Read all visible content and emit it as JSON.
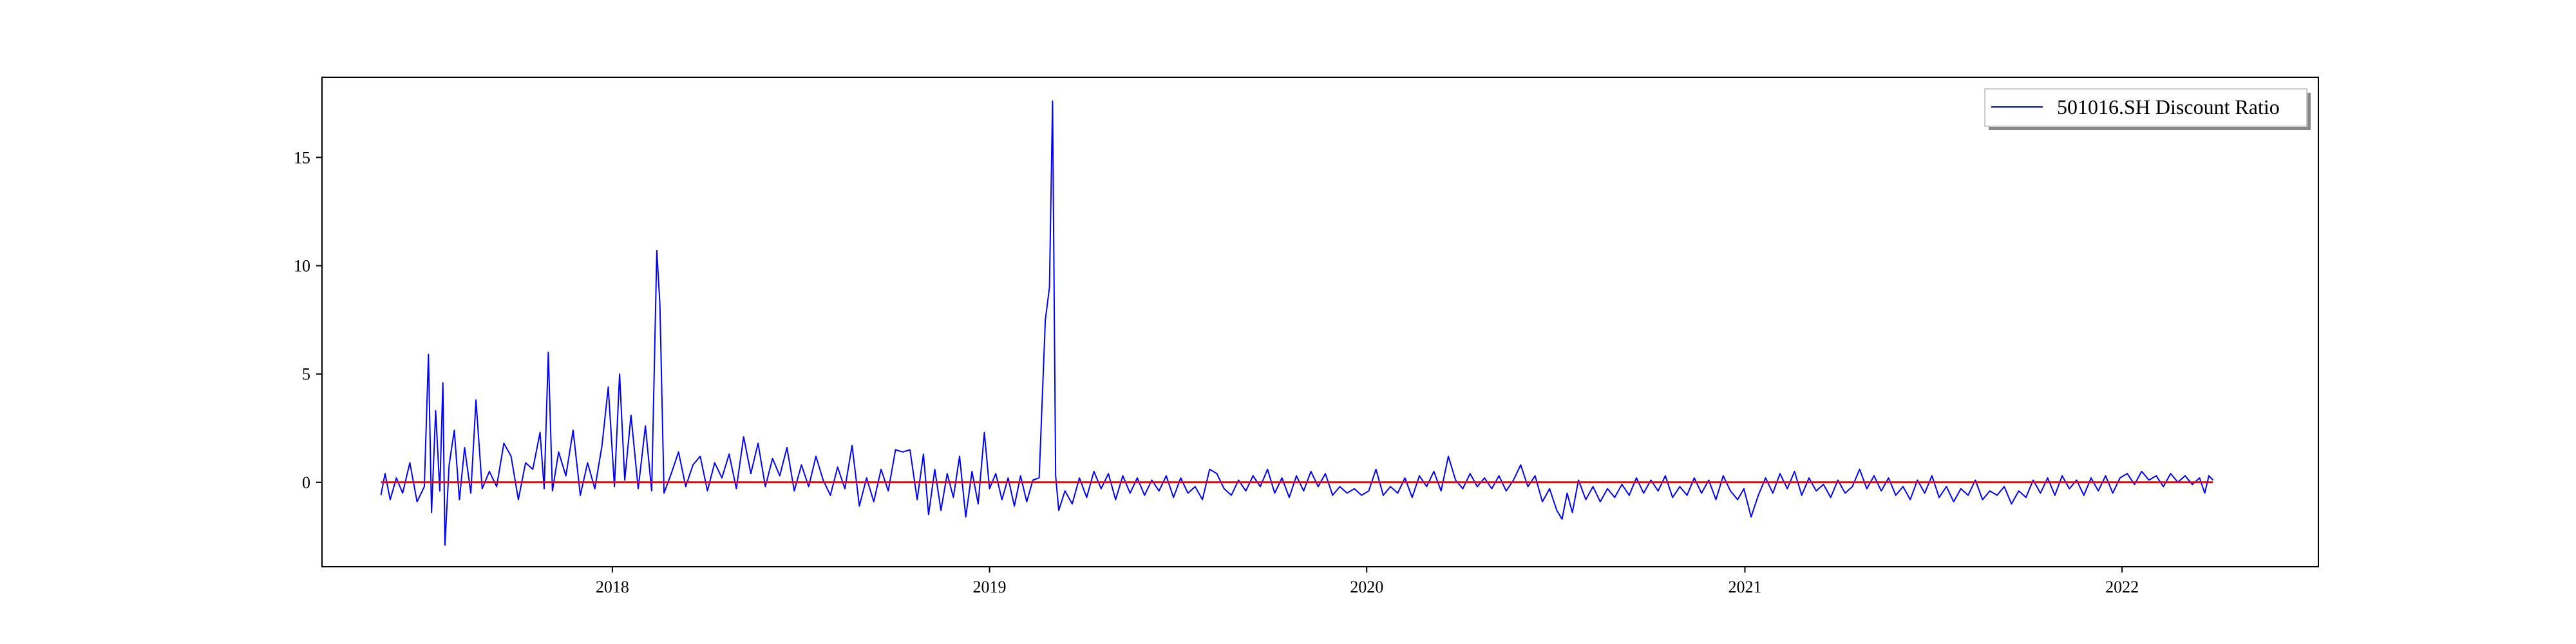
{
  "chart_data": {
    "type": "line",
    "title": "",
    "xlabel": "",
    "ylabel": "",
    "x_ticks": [
      "2018",
      "2019",
      "2020",
      "2021",
      "2022"
    ],
    "y_ticks": [
      "0",
      "5",
      "10",
      "15"
    ],
    "xlim": [
      "2017-03-26",
      "2022-07-10"
    ],
    "ylim": [
      -3.9,
      18.7
    ],
    "grid": false,
    "legend_position": "top-right",
    "series": [
      {
        "name": "501016.SH Discount Ratio",
        "color": "#0000ff",
        "points": [
          [
            "2017-05-22",
            -0.6
          ],
          [
            "2017-05-26",
            0.4
          ],
          [
            "2017-05-31",
            -0.8
          ],
          [
            "2017-06-06",
            0.2
          ],
          [
            "2017-06-12",
            -0.5
          ],
          [
            "2017-06-19",
            0.9
          ],
          [
            "2017-06-26",
            -0.9
          ],
          [
            "2017-07-03",
            -0.2
          ],
          [
            "2017-07-07",
            5.9
          ],
          [
            "2017-07-10",
            -1.4
          ],
          [
            "2017-07-14",
            3.3
          ],
          [
            "2017-07-18",
            -0.4
          ],
          [
            "2017-07-21",
            4.6
          ],
          [
            "2017-07-23",
            -2.9
          ],
          [
            "2017-07-27",
            0.8
          ],
          [
            "2017-08-01",
            2.4
          ],
          [
            "2017-08-06",
            -0.8
          ],
          [
            "2017-08-11",
            1.6
          ],
          [
            "2017-08-17",
            -0.5
          ],
          [
            "2017-08-22",
            3.8
          ],
          [
            "2017-08-28",
            -0.3
          ],
          [
            "2017-09-04",
            0.5
          ],
          [
            "2017-09-11",
            -0.2
          ],
          [
            "2017-09-18",
            1.8
          ],
          [
            "2017-09-25",
            1.2
          ],
          [
            "2017-10-02",
            -0.8
          ],
          [
            "2017-10-09",
            0.9
          ],
          [
            "2017-10-16",
            0.6
          ],
          [
            "2017-10-23",
            2.3
          ],
          [
            "2017-10-27",
            -0.3
          ],
          [
            "2017-10-31",
            6.0
          ],
          [
            "2017-11-04",
            -0.4
          ],
          [
            "2017-11-10",
            1.4
          ],
          [
            "2017-11-17",
            0.3
          ],
          [
            "2017-11-24",
            2.4
          ],
          [
            "2017-12-01",
            -0.6
          ],
          [
            "2017-12-08",
            0.9
          ],
          [
            "2017-12-15",
            -0.3
          ],
          [
            "2017-12-22",
            1.7
          ],
          [
            "2017-12-28",
            4.4
          ],
          [
            "2018-01-03",
            -0.2
          ],
          [
            "2018-01-08",
            5.0
          ],
          [
            "2018-01-13",
            0.1
          ],
          [
            "2018-01-19",
            3.1
          ],
          [
            "2018-01-26",
            -0.3
          ],
          [
            "2018-02-02",
            2.6
          ],
          [
            "2018-02-08",
            -0.4
          ],
          [
            "2018-02-13",
            10.7
          ],
          [
            "2018-02-16",
            8.2
          ],
          [
            "2018-02-20",
            -0.5
          ],
          [
            "2018-02-27",
            0.4
          ],
          [
            "2018-03-06",
            1.4
          ],
          [
            "2018-03-13",
            -0.2
          ],
          [
            "2018-03-20",
            0.8
          ],
          [
            "2018-03-27",
            1.2
          ],
          [
            "2018-04-03",
            -0.4
          ],
          [
            "2018-04-10",
            0.9
          ],
          [
            "2018-04-17",
            0.2
          ],
          [
            "2018-04-24",
            1.3
          ],
          [
            "2018-05-01",
            -0.3
          ],
          [
            "2018-05-08",
            2.1
          ],
          [
            "2018-05-15",
            0.4
          ],
          [
            "2018-05-22",
            1.8
          ],
          [
            "2018-05-29",
            -0.2
          ],
          [
            "2018-06-05",
            1.1
          ],
          [
            "2018-06-12",
            0.3
          ],
          [
            "2018-06-19",
            1.6
          ],
          [
            "2018-06-26",
            -0.4
          ],
          [
            "2018-07-03",
            0.8
          ],
          [
            "2018-07-10",
            -0.2
          ],
          [
            "2018-07-17",
            1.2
          ],
          [
            "2018-07-24",
            0.1
          ],
          [
            "2018-07-31",
            -0.6
          ],
          [
            "2018-08-07",
            0.7
          ],
          [
            "2018-08-14",
            -0.3
          ],
          [
            "2018-08-21",
            1.7
          ],
          [
            "2018-08-28",
            -1.1
          ],
          [
            "2018-09-04",
            0.2
          ],
          [
            "2018-09-11",
            -0.9
          ],
          [
            "2018-09-18",
            0.6
          ],
          [
            "2018-09-25",
            -0.4
          ],
          [
            "2018-10-02",
            1.5
          ],
          [
            "2018-10-09",
            1.4
          ],
          [
            "2018-10-16",
            1.5
          ],
          [
            "2018-10-23",
            -0.8
          ],
          [
            "2018-10-29",
            1.3
          ],
          [
            "2018-11-03",
            -1.5
          ],
          [
            "2018-11-09",
            0.6
          ],
          [
            "2018-11-15",
            -1.3
          ],
          [
            "2018-11-21",
            0.4
          ],
          [
            "2018-11-27",
            -0.7
          ],
          [
            "2018-12-03",
            1.2
          ],
          [
            "2018-12-09",
            -1.6
          ],
          [
            "2018-12-15",
            0.5
          ],
          [
            "2018-12-21",
            -1.0
          ],
          [
            "2018-12-27",
            2.3
          ],
          [
            "2019-01-01",
            -0.3
          ],
          [
            "2019-01-07",
            0.4
          ],
          [
            "2019-01-13",
            -0.8
          ],
          [
            "2019-01-19",
            0.2
          ],
          [
            "2019-01-25",
            -1.1
          ],
          [
            "2019-01-31",
            0.3
          ],
          [
            "2019-02-06",
            -0.9
          ],
          [
            "2019-02-12",
            0.1
          ],
          [
            "2019-02-18",
            0.2
          ],
          [
            "2019-02-24",
            7.5
          ],
          [
            "2019-02-28",
            9.0
          ],
          [
            "2019-03-03",
            17.6
          ],
          [
            "2019-03-06",
            0.3
          ],
          [
            "2019-03-09",
            -1.3
          ],
          [
            "2019-03-15",
            -0.4
          ],
          [
            "2019-03-22",
            -1.0
          ],
          [
            "2019-03-29",
            0.2
          ],
          [
            "2019-04-05",
            -0.7
          ],
          [
            "2019-04-12",
            0.5
          ],
          [
            "2019-04-19",
            -0.3
          ],
          [
            "2019-04-26",
            0.4
          ],
          [
            "2019-05-03",
            -0.8
          ],
          [
            "2019-05-10",
            0.3
          ],
          [
            "2019-05-17",
            -0.5
          ],
          [
            "2019-05-24",
            0.2
          ],
          [
            "2019-05-31",
            -0.6
          ],
          [
            "2019-06-07",
            0.1
          ],
          [
            "2019-06-14",
            -0.4
          ],
          [
            "2019-06-21",
            0.3
          ],
          [
            "2019-06-28",
            -0.7
          ],
          [
            "2019-07-05",
            0.2
          ],
          [
            "2019-07-12",
            -0.5
          ],
          [
            "2019-07-19",
            -0.2
          ],
          [
            "2019-07-26",
            -0.8
          ],
          [
            "2019-08-02",
            0.6
          ],
          [
            "2019-08-09",
            0.4
          ],
          [
            "2019-08-16",
            -0.3
          ],
          [
            "2019-08-23",
            -0.6
          ],
          [
            "2019-08-30",
            0.1
          ],
          [
            "2019-09-06",
            -0.4
          ],
          [
            "2019-09-13",
            0.3
          ],
          [
            "2019-09-20",
            -0.2
          ],
          [
            "2019-09-27",
            0.6
          ],
          [
            "2019-10-04",
            -0.5
          ],
          [
            "2019-10-11",
            0.2
          ],
          [
            "2019-10-18",
            -0.7
          ],
          [
            "2019-10-25",
            0.3
          ],
          [
            "2019-11-01",
            -0.4
          ],
          [
            "2019-11-08",
            0.5
          ],
          [
            "2019-11-15",
            -0.2
          ],
          [
            "2019-11-22",
            0.4
          ],
          [
            "2019-11-29",
            -0.6
          ],
          [
            "2019-12-06",
            -0.2
          ],
          [
            "2019-12-13",
            -0.5
          ],
          [
            "2019-12-20",
            -0.3
          ],
          [
            "2019-12-27",
            -0.6
          ],
          [
            "2020-01-03",
            -0.4
          ],
          [
            "2020-01-10",
            0.6
          ],
          [
            "2020-01-17",
            -0.6
          ],
          [
            "2020-01-24",
            -0.2
          ],
          [
            "2020-01-31",
            -0.5
          ],
          [
            "2020-02-07",
            0.2
          ],
          [
            "2020-02-14",
            -0.7
          ],
          [
            "2020-02-21",
            0.3
          ],
          [
            "2020-02-28",
            -0.2
          ],
          [
            "2020-03-06",
            0.5
          ],
          [
            "2020-03-13",
            -0.4
          ],
          [
            "2020-03-20",
            1.2
          ],
          [
            "2020-03-27",
            0.1
          ],
          [
            "2020-04-03",
            -0.3
          ],
          [
            "2020-04-10",
            0.4
          ],
          [
            "2020-04-17",
            -0.2
          ],
          [
            "2020-04-24",
            0.2
          ],
          [
            "2020-05-01",
            -0.3
          ],
          [
            "2020-05-08",
            0.3
          ],
          [
            "2020-05-15",
            -0.4
          ],
          [
            "2020-05-22",
            0.1
          ],
          [
            "2020-05-29",
            0.8
          ],
          [
            "2020-06-05",
            -0.2
          ],
          [
            "2020-06-12",
            0.3
          ],
          [
            "2020-06-19",
            -0.9
          ],
          [
            "2020-06-26",
            -0.3
          ],
          [
            "2020-07-03",
            -1.3
          ],
          [
            "2020-07-08",
            -1.7
          ],
          [
            "2020-07-13",
            -0.5
          ],
          [
            "2020-07-18",
            -1.4
          ],
          [
            "2020-07-24",
            0.1
          ],
          [
            "2020-07-31",
            -0.8
          ],
          [
            "2020-08-07",
            -0.2
          ],
          [
            "2020-08-14",
            -0.9
          ],
          [
            "2020-08-21",
            -0.3
          ],
          [
            "2020-08-28",
            -0.7
          ],
          [
            "2020-09-04",
            -0.1
          ],
          [
            "2020-09-11",
            -0.6
          ],
          [
            "2020-09-18",
            0.2
          ],
          [
            "2020-09-25",
            -0.5
          ],
          [
            "2020-10-02",
            0.1
          ],
          [
            "2020-10-09",
            -0.4
          ],
          [
            "2020-10-16",
            0.3
          ],
          [
            "2020-10-23",
            -0.7
          ],
          [
            "2020-10-30",
            -0.2
          ],
          [
            "2020-11-06",
            -0.6
          ],
          [
            "2020-11-13",
            0.2
          ],
          [
            "2020-11-20",
            -0.5
          ],
          [
            "2020-11-27",
            0.1
          ],
          [
            "2020-12-04",
            -0.8
          ],
          [
            "2020-12-11",
            0.3
          ],
          [
            "2020-12-18",
            -0.4
          ],
          [
            "2020-12-25",
            -0.8
          ],
          [
            "2020-12-31",
            -0.3
          ],
          [
            "2021-01-07",
            -1.6
          ],
          [
            "2021-01-14",
            -0.6
          ],
          [
            "2021-01-21",
            0.2
          ],
          [
            "2021-01-28",
            -0.5
          ],
          [
            "2021-02-04",
            0.4
          ],
          [
            "2021-02-11",
            -0.3
          ],
          [
            "2021-02-18",
            0.5
          ],
          [
            "2021-02-25",
            -0.6
          ],
          [
            "2021-03-04",
            0.2
          ],
          [
            "2021-03-11",
            -0.4
          ],
          [
            "2021-03-18",
            -0.1
          ],
          [
            "2021-03-25",
            -0.7
          ],
          [
            "2021-04-01",
            0.1
          ],
          [
            "2021-04-08",
            -0.5
          ],
          [
            "2021-04-15",
            -0.2
          ],
          [
            "2021-04-22",
            0.6
          ],
          [
            "2021-04-29",
            -0.3
          ],
          [
            "2021-05-06",
            0.3
          ],
          [
            "2021-05-13",
            -0.4
          ],
          [
            "2021-05-20",
            0.2
          ],
          [
            "2021-05-27",
            -0.6
          ],
          [
            "2021-06-03",
            -0.2
          ],
          [
            "2021-06-10",
            -0.8
          ],
          [
            "2021-06-17",
            0.1
          ],
          [
            "2021-06-24",
            -0.5
          ],
          [
            "2021-07-01",
            0.3
          ],
          [
            "2021-07-08",
            -0.7
          ],
          [
            "2021-07-15",
            -0.2
          ],
          [
            "2021-07-22",
            -0.9
          ],
          [
            "2021-07-29",
            -0.3
          ],
          [
            "2021-08-05",
            -0.6
          ],
          [
            "2021-08-12",
            0.1
          ],
          [
            "2021-08-19",
            -0.8
          ],
          [
            "2021-08-26",
            -0.4
          ],
          [
            "2021-09-02",
            -0.6
          ],
          [
            "2021-09-09",
            -0.2
          ],
          [
            "2021-09-16",
            -1.0
          ],
          [
            "2021-09-23",
            -0.4
          ],
          [
            "2021-09-30",
            -0.7
          ],
          [
            "2021-10-07",
            0.1
          ],
          [
            "2021-10-14",
            -0.5
          ],
          [
            "2021-10-21",
            0.2
          ],
          [
            "2021-10-28",
            -0.6
          ],
          [
            "2021-11-04",
            0.3
          ],
          [
            "2021-11-11",
            -0.3
          ],
          [
            "2021-11-18",
            0.1
          ],
          [
            "2021-11-25",
            -0.6
          ],
          [
            "2021-12-02",
            0.2
          ],
          [
            "2021-12-09",
            -0.4
          ],
          [
            "2021-12-16",
            0.3
          ],
          [
            "2021-12-23",
            -0.5
          ],
          [
            "2021-12-30",
            0.2
          ],
          [
            "2022-01-06",
            0.4
          ],
          [
            "2022-01-13",
            -0.1
          ],
          [
            "2022-01-20",
            0.5
          ],
          [
            "2022-01-27",
            0.1
          ],
          [
            "2022-02-03",
            0.3
          ],
          [
            "2022-02-10",
            -0.2
          ],
          [
            "2022-02-17",
            0.4
          ],
          [
            "2022-02-24",
            0.0
          ],
          [
            "2022-03-03",
            0.3
          ],
          [
            "2022-03-10",
            -0.1
          ],
          [
            "2022-03-17",
            0.2
          ],
          [
            "2022-03-22",
            -0.5
          ],
          [
            "2022-03-26",
            0.3
          ],
          [
            "2022-03-30",
            0.1
          ]
        ]
      },
      {
        "name": "",
        "color": "#ff0000",
        "points": [
          [
            "2017-05-22",
            0
          ],
          [
            "2022-03-30",
            0
          ]
        ]
      }
    ]
  }
}
